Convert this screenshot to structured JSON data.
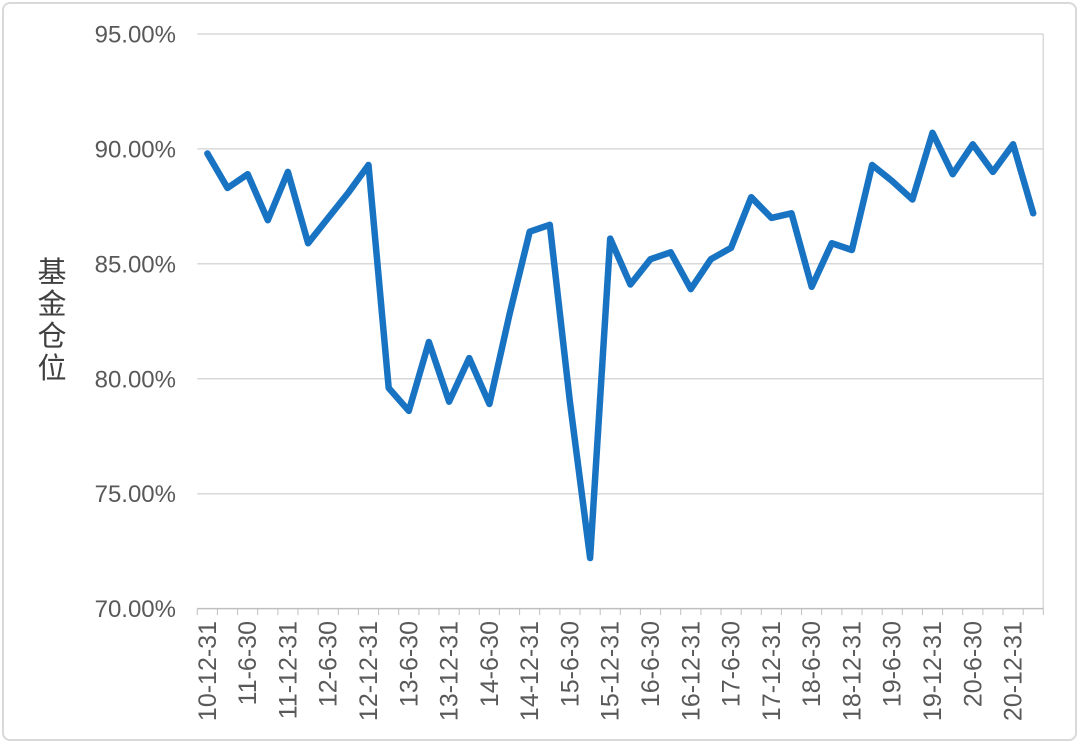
{
  "colors": {
    "line": "#1973C3",
    "gridline": "#D9D9D9",
    "axis_line": "#BFBFBF",
    "tick_mark": "#BFBFBF",
    "plot_right_border": "#D9D9D9",
    "tick_label": "#595959",
    "axis_title": "#404040",
    "frame_border": "#D9D9D9",
    "background": "#FFFFFF"
  },
  "chart_data": {
    "type": "line",
    "title": "",
    "xlabel": "",
    "ylabel": "基金仓位",
    "ylabel_chars": [
      "基",
      "金",
      "仓",
      "位"
    ],
    "ylim": [
      70,
      95
    ],
    "grid": true,
    "legend": false,
    "y_tick_labels": [
      "95.00%",
      "90.00%",
      "85.00%",
      "80.00%",
      "75.00%",
      "70.00%"
    ],
    "y_tick_values": [
      95,
      90,
      85,
      80,
      75,
      70
    ],
    "x_visible_tick_labels": [
      "10-12-31",
      "11-6-30",
      "11-12-31",
      "12-6-30",
      "12-12-31",
      "13-6-30",
      "13-12-31",
      "14-6-30",
      "14-12-31",
      "15-6-30",
      "15-12-31",
      "16-6-30",
      "16-12-31",
      "17-6-30",
      "17-12-31",
      "18-6-30",
      "18-12-31",
      "19-6-30",
      "19-12-31",
      "20-6-30",
      "20-12-31"
    ],
    "x_label_every_n_points": 2,
    "series": [
      {
        "name": "基金仓位",
        "color": "#1973C3",
        "x": [
          "10-12-31",
          "11-3-31",
          "11-6-30",
          "11-9-30",
          "11-12-31",
          "12-3-31",
          "12-6-30",
          "12-9-30",
          "12-12-31",
          "13-3-31",
          "13-6-30",
          "13-9-30",
          "13-12-31",
          "14-3-31",
          "14-6-30",
          "14-9-30",
          "14-12-31",
          "15-3-31",
          "15-6-30",
          "15-9-30",
          "15-12-31",
          "16-3-31",
          "16-6-30",
          "16-9-30",
          "16-12-31",
          "17-3-31",
          "17-6-30",
          "17-9-30",
          "17-12-31",
          "18-3-31",
          "18-6-30",
          "18-9-30",
          "18-12-31",
          "19-3-31",
          "19-6-30",
          "19-9-30",
          "19-12-31",
          "20-3-31",
          "20-6-30",
          "20-9-30",
          "20-12-31",
          "21-3-31"
        ],
        "values": [
          89.8,
          88.3,
          88.9,
          86.9,
          89.0,
          85.9,
          87.0,
          88.1,
          89.3,
          79.6,
          78.6,
          81.6,
          79.0,
          80.9,
          78.9,
          82.8,
          86.4,
          86.7,
          79.0,
          72.2,
          86.1,
          84.1,
          85.2,
          85.5,
          83.9,
          85.2,
          85.7,
          87.9,
          87.0,
          87.2,
          84.0,
          85.9,
          85.6,
          89.3,
          88.6,
          87.8,
          90.7,
          88.9,
          90.2,
          89.0,
          90.2,
          87.2
        ]
      }
    ]
  }
}
